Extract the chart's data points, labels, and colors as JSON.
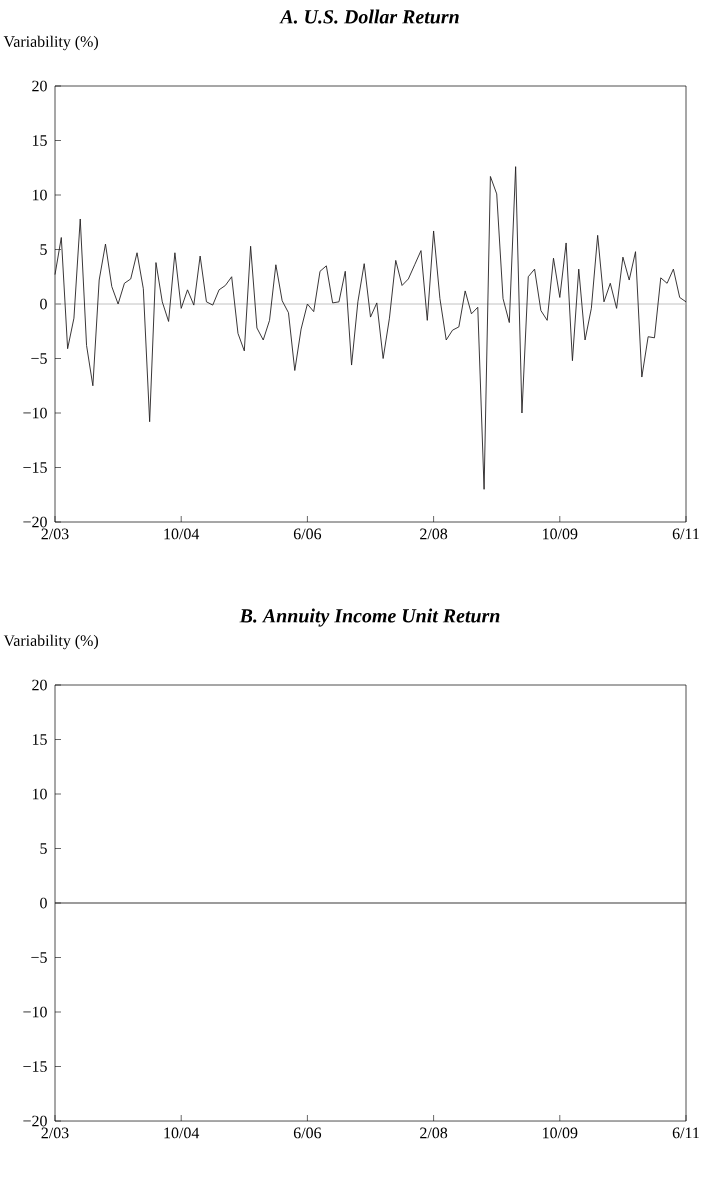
{
  "chart_data": [
    {
      "type": "line",
      "title": "A. U.S. Dollar Return",
      "ylabel": "Variability (%)",
      "x": [
        "2003-02",
        "2003-03",
        "2003-04",
        "2003-05",
        "2003-06",
        "2003-07",
        "2003-08",
        "2003-09",
        "2003-10",
        "2003-11",
        "2003-12",
        "2004-01",
        "2004-02",
        "2004-03",
        "2004-04",
        "2004-05",
        "2004-06",
        "2004-07",
        "2004-08",
        "2004-09",
        "2004-10",
        "2004-11",
        "2004-12",
        "2005-01",
        "2005-02",
        "2005-03",
        "2005-04",
        "2005-05",
        "2005-06",
        "2005-07",
        "2005-08",
        "2005-09",
        "2005-10",
        "2005-11",
        "2005-12",
        "2006-01",
        "2006-02",
        "2006-03",
        "2006-04",
        "2006-05",
        "2006-06",
        "2006-07",
        "2006-08",
        "2006-09",
        "2006-10",
        "2006-11",
        "2006-12",
        "2007-01",
        "2007-02",
        "2007-03",
        "2007-04",
        "2007-05",
        "2007-06",
        "2007-07",
        "2007-08",
        "2007-09",
        "2007-10",
        "2007-11",
        "2007-12",
        "2008-01",
        "2008-02",
        "2008-03",
        "2008-04",
        "2008-05",
        "2008-06",
        "2008-07",
        "2008-08",
        "2008-09",
        "2008-10",
        "2008-11",
        "2008-12",
        "2009-01",
        "2009-02",
        "2009-03",
        "2009-04",
        "2009-05",
        "2009-06",
        "2009-07",
        "2009-08",
        "2009-09",
        "2009-10",
        "2009-11",
        "2009-12",
        "2010-01",
        "2010-02",
        "2010-03",
        "2010-04",
        "2010-05",
        "2010-06",
        "2010-07",
        "2010-08",
        "2010-09",
        "2010-10",
        "2010-11",
        "2010-12",
        "2011-01",
        "2011-02",
        "2011-03",
        "2011-04",
        "2011-05",
        "2011-06"
      ],
      "series": [
        {
          "color": "#231f20",
          "values": [
            2.7,
            6.1,
            -4.1,
            -1.3,
            7.8,
            -3.8,
            -7.5,
            2.2,
            5.5,
            1.6,
            0,
            1.9,
            2.3,
            4.7,
            1.4,
            -10.8,
            3.8,
            0.2,
            -1.6,
            4.7,
            -0.4,
            1.3,
            -0.1,
            4.4,
            0.2,
            -0.1,
            1.3,
            1.7,
            2.5,
            -2.7,
            -4.3,
            5.3,
            -2.2,
            -3.3,
            -1.5,
            3.6,
            0.3,
            -0.8,
            -6.1,
            -2.3,
            0,
            -0.7,
            3.0,
            3.5,
            0.1,
            0.2,
            3.0,
            -5.6,
            0.2,
            3.7,
            -1.2,
            0.1,
            -5.0,
            -1.3,
            4.0,
            1.7,
            2.3,
            3.6,
            4.9,
            -1.5,
            6.7,
            0.5,
            -3.3,
            -2.4,
            -2.1,
            1.2,
            -0.9,
            -0.3,
            -17.0,
            11.7,
            10.1,
            0.5,
            -1.7,
            12.6,
            -10.0,
            2.5,
            3.2,
            -0.6,
            -1.5,
            4.2,
            0.6,
            5.6,
            -5.2,
            3.2,
            -3.3,
            -0.4,
            6.3,
            0.2,
            1.9,
            -0.4,
            4.3,
            2.2,
            4.8,
            -6.7,
            -3.0,
            -3.1,
            2.4,
            1.9,
            3.2,
            0.6,
            0.2
          ]
        }
      ],
      "xlim": [
        "2003-02",
        "2011-06"
      ],
      "xticks": [
        {
          "value": "2003-02",
          "label": "2/03"
        },
        {
          "value": "2004-10",
          "label": "10/04"
        },
        {
          "value": "2006-06",
          "label": "6/06"
        },
        {
          "value": "2008-02",
          "label": "2/08"
        },
        {
          "value": "2009-10",
          "label": "10/09"
        },
        {
          "value": "2011-06",
          "label": "6/11"
        }
      ],
      "ylim": [
        -20,
        20
      ],
      "yticks": [
        {
          "value": -20,
          "label": "−20"
        },
        {
          "value": -15,
          "label": "−15"
        },
        {
          "value": -10,
          "label": "−10"
        },
        {
          "value": -5,
          "label": "−5"
        },
        0,
        5,
        10,
        15,
        20
      ],
      "ref_lines": [
        {
          "axis": "y",
          "value": 0,
          "color": "#b3b3b3"
        }
      ]
    },
    {
      "type": "line",
      "title": "B. Annuity Income Unit Return",
      "ylabel": "Variability (%)",
      "x": [
        "2003-02",
        "2011-06"
      ],
      "series": [
        {
          "color": "#231f20",
          "values": [
            0,
            0
          ]
        }
      ],
      "xlim": [
        "2003-02",
        "2011-06"
      ],
      "xticks": [
        {
          "value": "2003-02",
          "label": "2/03"
        },
        {
          "value": "2004-10",
          "label": "10/04"
        },
        {
          "value": "2006-06",
          "label": "6/06"
        },
        {
          "value": "2008-02",
          "label": "2/08"
        },
        {
          "value": "2009-10",
          "label": "10/09"
        },
        {
          "value": "2011-06",
          "label": "6/11"
        }
      ],
      "ylim": [
        -20,
        20
      ],
      "yticks": [
        {
          "value": -20,
          "label": "−20"
        },
        {
          "value": -15,
          "label": "−15"
        },
        {
          "value": -10,
          "label": "−10"
        },
        {
          "value": -5,
          "label": "−5"
        },
        0,
        5,
        10,
        15,
        20
      ]
    }
  ]
}
